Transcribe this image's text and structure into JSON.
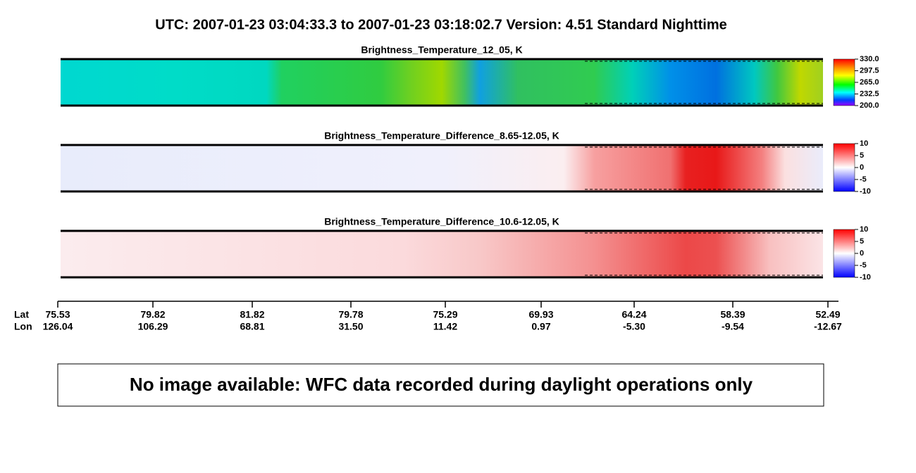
{
  "header": {
    "title": "UTC:  2007-01-23   03:04:33.3  to  2007-01-23   03:18:02.7    Version: 4.51  Standard Nighttime"
  },
  "panels": [
    {
      "title": "Brightness_Temperature_12_05, K",
      "colorbar_ticks": [
        "330.0",
        "297.5",
        "265.0",
        "232.5",
        "200.0"
      ]
    },
    {
      "title": "Brightness_Temperature_Difference_8.65-12.05, K",
      "colorbar_ticks": [
        "10",
        "5",
        "0",
        "-5",
        "-10"
      ]
    },
    {
      "title": "Brightness_Temperature_Difference_10.6-12.05, K",
      "colorbar_ticks": [
        "10",
        "5",
        "0",
        "-5",
        "-10"
      ]
    }
  ],
  "axis": {
    "lat_label": "Lat",
    "lon_label": "Lon",
    "ticks": [
      {
        "lat": "75.53",
        "lon": "126.04"
      },
      {
        "lat": "79.82",
        "lon": "106.29"
      },
      {
        "lat": "81.82",
        "lon": "68.81"
      },
      {
        "lat": "79.78",
        "lon": "31.50"
      },
      {
        "lat": "75.29",
        "lon": "11.42"
      },
      {
        "lat": "69.93",
        "lon": "0.97"
      },
      {
        "lat": "64.24",
        "lon": "-5.30"
      },
      {
        "lat": "58.39",
        "lon": "-9.54"
      },
      {
        "lat": "52.49",
        "lon": "-12.67"
      }
    ]
  },
  "notice": {
    "text": "No image available: WFC data recorded during daylight operations only"
  }
}
